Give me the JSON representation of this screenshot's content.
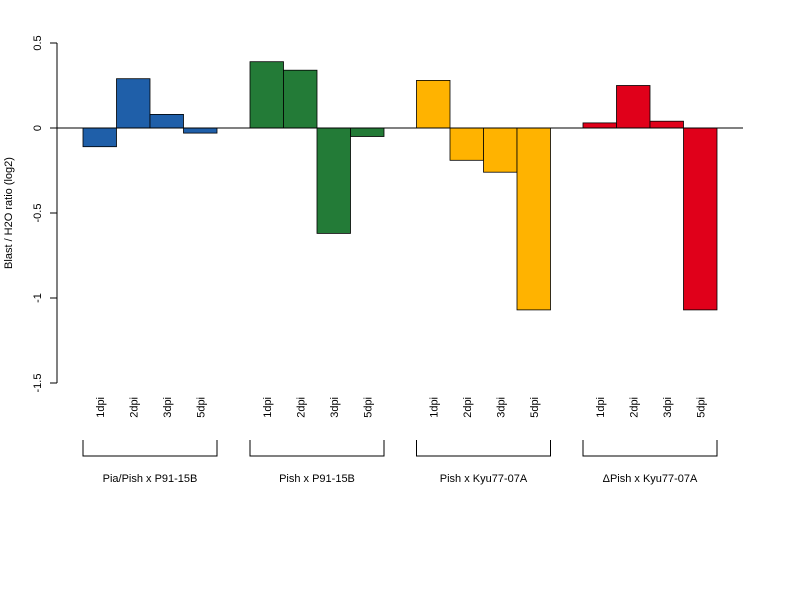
{
  "chart_data": {
    "type": "bar",
    "title": "",
    "xlabel": "",
    "ylabel": "Blast / H2O ratio (log2)",
    "ylim": [
      -1.5,
      0.5
    ],
    "yticks": [
      0.5,
      0,
      -0.5,
      -1,
      -1.5
    ],
    "ytick_labels": [
      "0.5",
      "0",
      "-0.5",
      "-1",
      "-1.5"
    ],
    "grid": false,
    "legend": "none",
    "categories": [
      "1dpi",
      "2dpi",
      "3dpi",
      "5dpi"
    ],
    "groups": [
      {
        "name": "Pia/Pish x P91-15B",
        "color": "#1f5fa9",
        "values": [
          -0.11,
          0.29,
          0.08,
          -0.03
        ]
      },
      {
        "name": "Pish x P91-15B",
        "color": "#237b37",
        "values": [
          0.39,
          0.34,
          -0.62,
          -0.05
        ]
      },
      {
        "name": "Pish x Kyu77-07A",
        "color": "#ffb300",
        "values": [
          0.28,
          -0.19,
          -0.26,
          -1.07
        ]
      },
      {
        "name": "ΔPish x Kyu77-07A",
        "color": "#e0001a",
        "values": [
          0.03,
          0.25,
          0.04,
          -1.07
        ]
      }
    ]
  }
}
